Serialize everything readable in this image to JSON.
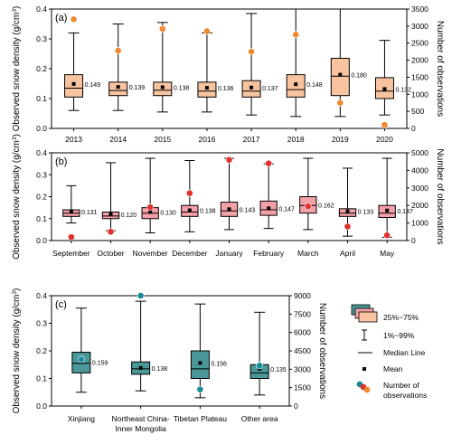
{
  "chart_data": [
    {
      "type": "box",
      "panel_label": "(a)",
      "categories": [
        "2013",
        "2014",
        "2015",
        "2016",
        "2017",
        "2018",
        "2019",
        "2020"
      ],
      "ylabel": "Observed snow density (g/cm³)",
      "y2label": "Number of observations",
      "ylim": [
        0,
        0.4
      ],
      "yticks": [
        "0.0",
        "0.1",
        "0.2",
        "0.3",
        "0.4"
      ],
      "y2lim": [
        0,
        3500
      ],
      "y2ticks": [
        "0",
        "500",
        "1000",
        "1500",
        "2000",
        "2500",
        "3000",
        "3500"
      ],
      "box_color": "#f8c4a0",
      "marker_color": "#f08a30",
      "boxes": [
        {
          "category": "2013",
          "whisker_low": 0.06,
          "q1": 0.105,
          "median": 0.135,
          "q3": 0.18,
          "whisker_high": 0.32,
          "mean": 0.149,
          "mean_label": "0.149",
          "observations": 3200
        },
        {
          "category": "2014",
          "whisker_low": 0.06,
          "q1": 0.11,
          "median": 0.127,
          "q3": 0.155,
          "whisker_high": 0.35,
          "mean": 0.139,
          "mean_label": "0.139",
          "observations": 2280
        },
        {
          "category": "2015",
          "whisker_low": 0.055,
          "q1": 0.11,
          "median": 0.128,
          "q3": 0.155,
          "whisker_high": 0.355,
          "mean": 0.138,
          "mean_label": "0.138",
          "observations": 2920
        },
        {
          "category": "2016",
          "whisker_low": 0.055,
          "q1": 0.105,
          "median": 0.125,
          "q3": 0.155,
          "whisker_high": 0.32,
          "mean": 0.136,
          "mean_label": "0.136",
          "observations": 2850
        },
        {
          "category": "2017",
          "whisker_low": 0.045,
          "q1": 0.105,
          "median": 0.125,
          "q3": 0.16,
          "whisker_high": 0.385,
          "mean": 0.137,
          "mean_label": "0.137",
          "observations": 2250
        },
        {
          "category": "2018",
          "whisker_low": 0.04,
          "q1": 0.105,
          "median": 0.13,
          "q3": 0.18,
          "whisker_high": 0.4,
          "mean": 0.148,
          "mean_label": "0.148",
          "observations": 2750
        },
        {
          "category": "2019",
          "whisker_low": 0.04,
          "q1": 0.11,
          "median": 0.175,
          "q3": 0.235,
          "whisker_high": 0.4,
          "mean": 0.18,
          "mean_label": "0.180",
          "observations": 750
        },
        {
          "category": "2020",
          "whisker_low": 0.045,
          "q1": 0.1,
          "median": 0.125,
          "q3": 0.17,
          "whisker_high": 0.295,
          "mean": 0.132,
          "mean_label": "0.132",
          "observations": 100
        }
      ]
    },
    {
      "type": "box",
      "panel_label": "(b)",
      "categories": [
        "September",
        "October",
        "November",
        "December",
        "January",
        "February",
        "March",
        "April",
        "May"
      ],
      "ylabel": "Observed snow density (g/cm³)",
      "y2label": "Number of observations",
      "ylim": [
        0,
        0.4
      ],
      "yticks": [
        "0.0",
        "0.1",
        "0.2",
        "0.3",
        "0.4"
      ],
      "y2lim": [
        0,
        5000
      ],
      "y2ticks": [
        "0",
        "1000",
        "2000",
        "3000",
        "4000",
        "5000"
      ],
      "box_color": "#f4a0a8",
      "marker_color": "#e03030",
      "boxes": [
        {
          "category": "September",
          "whisker_low": 0.08,
          "q1": 0.11,
          "median": 0.125,
          "q3": 0.14,
          "whisker_high": 0.25,
          "mean": 0.131,
          "mean_label": "0.131",
          "observations": 200
        },
        {
          "category": "October",
          "whisker_low": 0.045,
          "q1": 0.1,
          "median": 0.112,
          "q3": 0.13,
          "whisker_high": 0.355,
          "mean": 0.12,
          "mean_label": "0.120",
          "observations": 500
        },
        {
          "category": "November",
          "whisker_low": 0.035,
          "q1": 0.1,
          "median": 0.125,
          "q3": 0.15,
          "whisker_high": 0.375,
          "mean": 0.13,
          "mean_label": "0.130",
          "observations": 1900
        },
        {
          "category": "December",
          "whisker_low": 0.04,
          "q1": 0.11,
          "median": 0.13,
          "q3": 0.16,
          "whisker_high": 0.365,
          "mean": 0.138,
          "mean_label": "0.138",
          "observations": 2700
        },
        {
          "category": "January",
          "whisker_low": 0.05,
          "q1": 0.11,
          "median": 0.135,
          "q3": 0.175,
          "whisker_high": 0.375,
          "mean": 0.143,
          "mean_label": "0.143",
          "observations": 4600
        },
        {
          "category": "February",
          "whisker_low": 0.055,
          "q1": 0.115,
          "median": 0.14,
          "q3": 0.18,
          "whisker_high": 0.35,
          "mean": 0.147,
          "mean_label": "0.147",
          "observations": 4400
        },
        {
          "category": "March",
          "whisker_low": 0.05,
          "q1": 0.125,
          "median": 0.16,
          "q3": 0.2,
          "whisker_high": 0.375,
          "mean": 0.162,
          "mean_label": "0.162",
          "observations": 1950
        },
        {
          "category": "April",
          "whisker_low": 0.02,
          "q1": 0.11,
          "median": 0.125,
          "q3": 0.145,
          "whisker_high": 0.33,
          "mean": 0.133,
          "mean_label": "0.133",
          "observations": 800
        },
        {
          "category": "May",
          "whisker_low": 0.015,
          "q1": 0.105,
          "median": 0.125,
          "q3": 0.16,
          "whisker_high": 0.375,
          "mean": 0.137,
          "mean_label": "0.137",
          "observations": 300
        }
      ]
    },
    {
      "type": "box",
      "panel_label": "(c)",
      "categories": [
        "Xinjiang",
        "Northeast China-\nInner Mongolia",
        "Tibetan Plateau",
        "Other area"
      ],
      "ylabel": "Observed snow density (g/cm³)",
      "y2label": "Number of observations",
      "ylim": [
        0,
        0.4
      ],
      "yticks": [
        "0.0",
        "0.1",
        "0.2",
        "0.3",
        "0.4"
      ],
      "y2lim": [
        0,
        9000
      ],
      "y2ticks": [
        "0",
        "1500",
        "3000",
        "4500",
        "6000",
        "7500",
        "9000"
      ],
      "box_color": "#4a9898",
      "marker_color": "#1a8a9a",
      "boxes": [
        {
          "category": "Xinjiang",
          "whisker_low": 0.05,
          "q1": 0.12,
          "median": 0.155,
          "q3": 0.195,
          "whisker_high": 0.355,
          "mean": 0.159,
          "mean_label": "0.159",
          "observations": 3800
        },
        {
          "category": "Northeast China-Inner Mongolia",
          "whisker_low": 0.055,
          "q1": 0.115,
          "median": 0.135,
          "q3": 0.16,
          "whisker_high": 0.38,
          "mean": 0.138,
          "mean_label": "0.138",
          "observations": 9000
        },
        {
          "category": "Tibetan Plateau",
          "whisker_low": 0.03,
          "q1": 0.1,
          "median": 0.135,
          "q3": 0.2,
          "whisker_high": 0.37,
          "mean": 0.156,
          "mean_label": "0.156",
          "observations": 1350
        },
        {
          "category": "Other area",
          "whisker_low": 0.04,
          "q1": 0.1,
          "median": 0.12,
          "q3": 0.15,
          "whisker_high": 0.34,
          "mean": 0.135,
          "mean_label": "0.135",
          "observations": 3300
        }
      ]
    }
  ],
  "legend": {
    "box_label": "25%~75%",
    "whisker_label": "1%~99%",
    "median_label": "Median Line",
    "mean_label": "Mean",
    "observations_label_line1": "Number of",
    "observations_label_line2": "observations",
    "swatch_colors": [
      "#4a9898",
      "#f4a0a8",
      "#f8c4a0"
    ],
    "marker_colors": [
      "#1a8a9a",
      "#e03030",
      "#f08a30"
    ]
  }
}
